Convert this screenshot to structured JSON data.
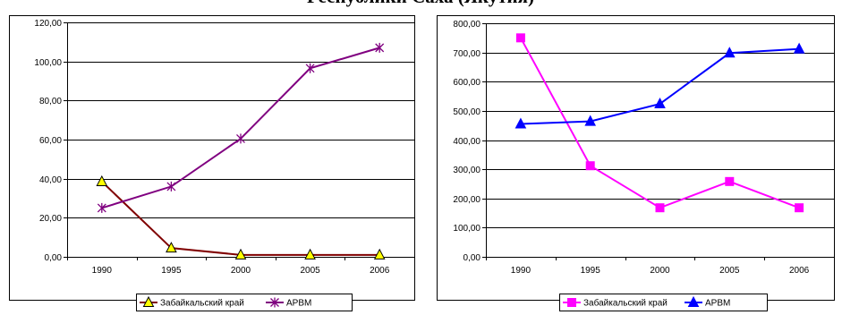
{
  "heading": "Республики Саха (Якутия)",
  "chart_data": [
    {
      "type": "line",
      "categories": [
        "1990",
        "1995",
        "2000",
        "2005",
        "2006"
      ],
      "ylim": [
        0,
        120
      ],
      "ytick_step": 20,
      "grid": true,
      "legend_position": "bottom",
      "series": [
        {
          "name": "Забайкальский край",
          "values": [
            38.5,
            4.5,
            1.0,
            1.0,
            1.0
          ],
          "color": "#800000",
          "marker": "triangle",
          "marker_fill": "#ffff00",
          "marker_stroke": "#000000"
        },
        {
          "name": "АРВМ",
          "values": [
            25.0,
            36.0,
            60.5,
            96.5,
            107.0
          ],
          "color": "#800080",
          "marker": "asterisk",
          "marker_fill": "#800080",
          "marker_stroke": "#800080"
        }
      ]
    },
    {
      "type": "line",
      "categories": [
        "1990",
        "1995",
        "2000",
        "2005",
        "2006"
      ],
      "ylim": [
        0,
        800
      ],
      "ytick_step": 100,
      "grid": true,
      "legend_position": "bottom",
      "series": [
        {
          "name": "Забайкальский край",
          "values": [
            750,
            312,
            168,
            258,
            168
          ],
          "color": "#ff00ff",
          "marker": "square",
          "marker_fill": "#ff00ff",
          "marker_stroke": "#ff00ff"
        },
        {
          "name": "АРВМ",
          "values": [
            455,
            464,
            524,
            698,
            712
          ],
          "color": "#0000ff",
          "marker": "triangle",
          "marker_fill": "#0000ff",
          "marker_stroke": "#0000ff"
        }
      ]
    }
  ]
}
